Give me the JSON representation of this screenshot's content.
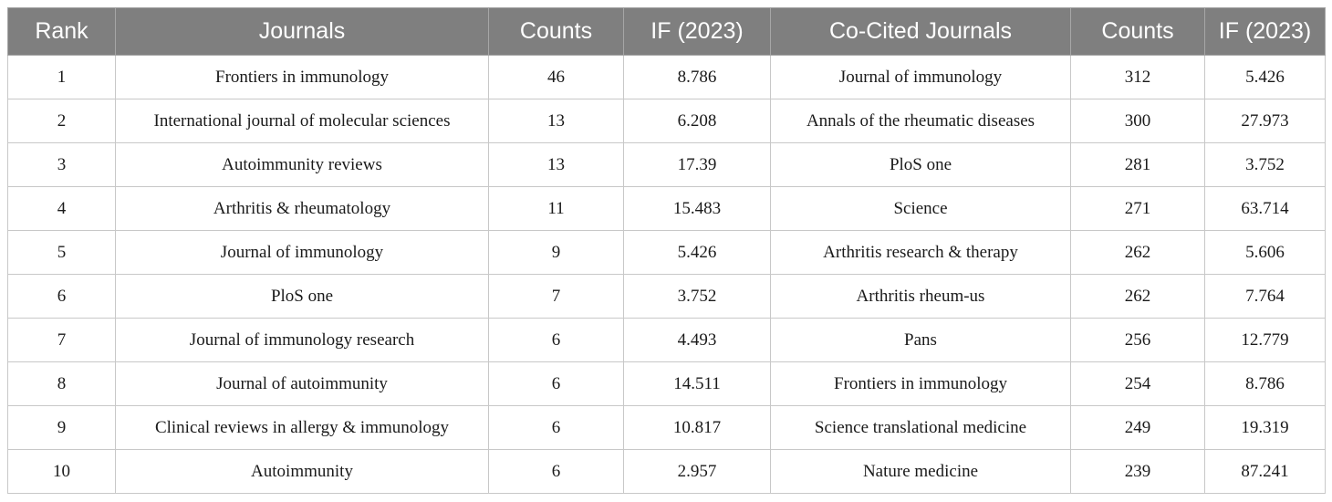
{
  "headers": [
    "Rank",
    "Journals",
    "Counts",
    "IF (2023)",
    "Co-Cited Journals",
    "Counts",
    "IF (2023)"
  ],
  "rows": [
    [
      "1",
      "Frontiers in immunology",
      "46",
      "8.786",
      "Journal of immunology",
      "312",
      "5.426"
    ],
    [
      "2",
      "International journal of molecular sciences",
      "13",
      "6.208",
      "Annals of the rheumatic diseases",
      "300",
      "27.973"
    ],
    [
      "3",
      "Autoimmunity reviews",
      "13",
      "17.39",
      "PloS one",
      "281",
      "3.752"
    ],
    [
      "4",
      "Arthritis & rheumatology",
      "11",
      "15.483",
      "Science",
      "271",
      "63.714"
    ],
    [
      "5",
      "Journal of immunology",
      "9",
      "5.426",
      "Arthritis research & therapy",
      "262",
      "5.606"
    ],
    [
      "6",
      "PloS one",
      "7",
      "3.752",
      "Arthritis rheum-us",
      "262",
      "7.764"
    ],
    [
      "7",
      "Journal of immunology research",
      "6",
      "4.493",
      "Pans",
      "256",
      "12.779"
    ],
    [
      "8",
      "Journal of autoimmunity",
      "6",
      "14.511",
      "Frontiers in immunology",
      "254",
      "8.786"
    ],
    [
      "9",
      "Clinical reviews in allergy & immunology",
      "6",
      "10.817",
      "Science translational medicine",
      "249",
      "19.319"
    ],
    [
      "10",
      "Autoimmunity",
      "6",
      "2.957",
      "Nature medicine",
      "239",
      "87.241"
    ]
  ]
}
